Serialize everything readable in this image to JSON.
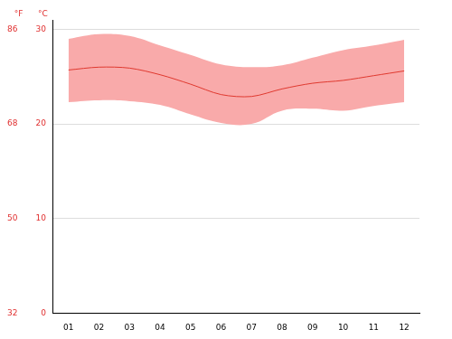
{
  "chart_data": {
    "type": "line",
    "categories": [
      "01",
      "02",
      "03",
      "04",
      "05",
      "06",
      "07",
      "08",
      "09",
      "10",
      "11",
      "12"
    ],
    "series": [
      {
        "type": "range",
        "color": "#f9aaaa",
        "low": [
          22.3,
          22.5,
          22.4,
          22.0,
          21.0,
          20.1,
          20.0,
          21.4,
          21.6,
          21.4,
          21.9,
          22.3
        ],
        "high": [
          29.0,
          29.5,
          29.3,
          28.3,
          27.3,
          26.3,
          26.0,
          26.2,
          27.0,
          27.8,
          28.3,
          28.9
        ]
      },
      {
        "type": "line",
        "color": "#e0392f",
        "values": [
          25.7,
          26.0,
          25.9,
          25.2,
          24.2,
          23.1,
          22.9,
          23.7,
          24.3,
          24.6,
          25.1,
          25.6
        ]
      }
    ],
    "y_label": "°C",
    "ylim": [
      0,
      31
    ],
    "yticks": [
      0,
      10,
      20,
      30
    ],
    "y2_label": "°F",
    "y2lim": [
      32,
      87.8
    ],
    "y2ticks": [
      32,
      50,
      68,
      86
    ],
    "grid": true
  }
}
